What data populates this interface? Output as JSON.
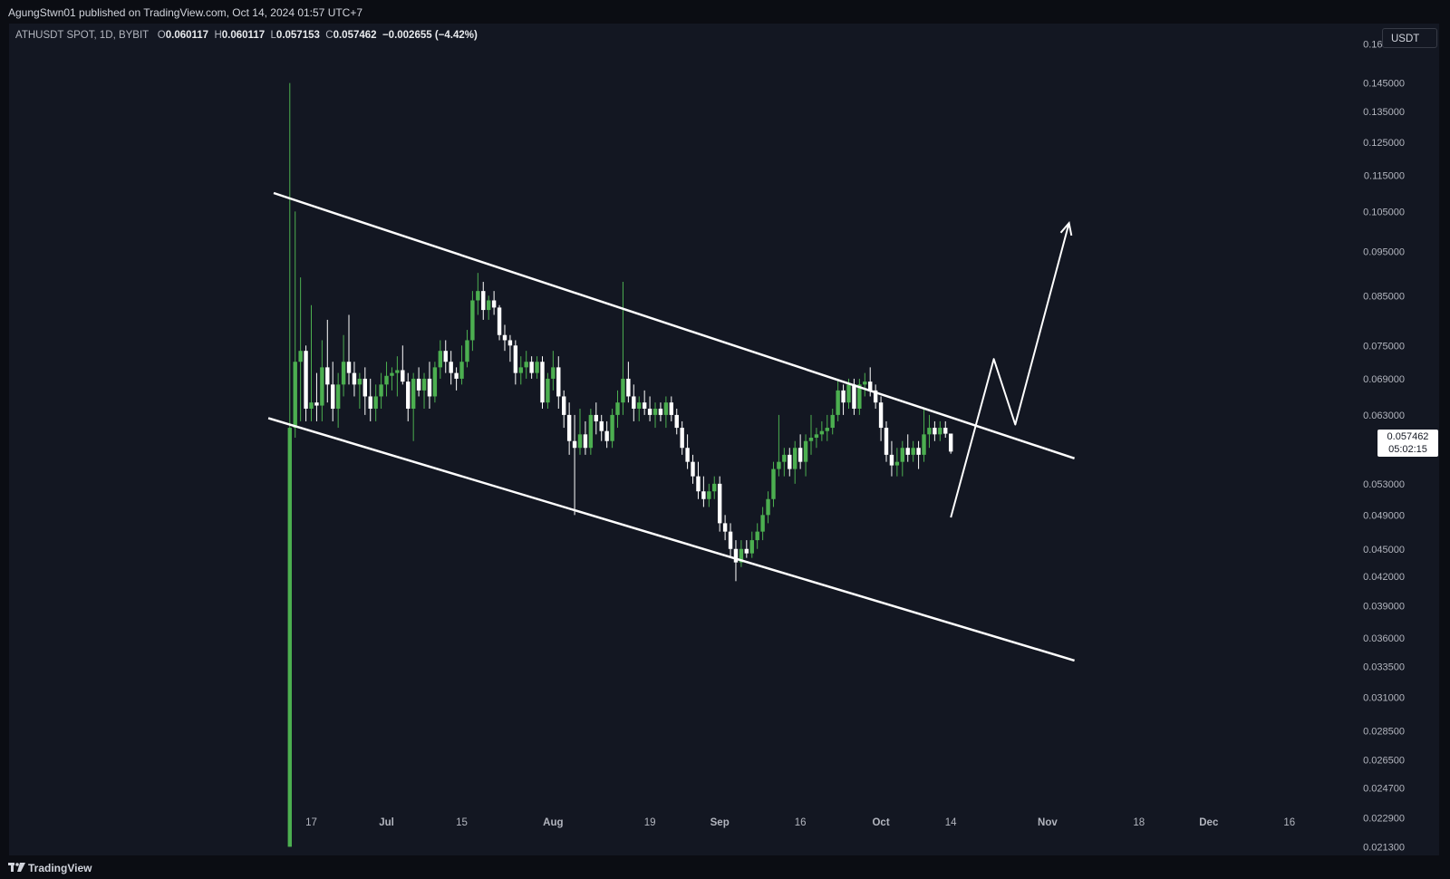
{
  "header": {
    "published": "AgungStwn01 published on TradingView.com, Oct 14, 2024 01:57 UTC+7"
  },
  "legend": {
    "symbol": "ATHUSDT SPOT, 1D, BYBIT",
    "o_label": "O",
    "o": "0.060117",
    "h_label": "H",
    "h": "0.060117",
    "l_label": "L",
    "l": "0.057153",
    "c_label": "C",
    "c": "0.057462",
    "change": "−0.002655 (−4.42%)"
  },
  "currency": "USDT",
  "last_price": {
    "price": "0.057462",
    "countdown": "05:02:15"
  },
  "footer": {
    "brand": "TradingView"
  },
  "colors": {
    "up": "#4caf50",
    "down": "#ffffff",
    "background": "#131722",
    "lines": "#ffffff"
  },
  "chart_data": {
    "type": "candlestick",
    "scale": "log",
    "y_ticks": [
      "0.160000",
      "0.145000",
      "0.135000",
      "0.125000",
      "0.115000",
      "0.105000",
      "0.095000",
      "0.085000",
      "0.075000",
      "0.069000",
      "0.063000",
      "0.053000",
      "0.049000",
      "0.045000",
      "0.042000",
      "0.039000",
      "0.036000",
      "0.033500",
      "0.031000",
      "0.028500",
      "0.026500",
      "0.024700",
      "0.022900",
      "0.021300"
    ],
    "x_ticks": [
      "17",
      "Jul",
      "15",
      "Aug",
      "19",
      "Sep",
      "16",
      "Oct",
      "14",
      "Nov",
      "18",
      "Dec",
      "16"
    ],
    "x_tick_dates": [
      "2024-06-17",
      "2024-07-01",
      "2024-07-15",
      "2024-08-01",
      "2024-08-19",
      "2024-09-01",
      "2024-09-16",
      "2024-10-01",
      "2024-10-14",
      "2024-11-01",
      "2024-11-18",
      "2024-12-01",
      "2024-12-16"
    ],
    "candles": [
      {
        "date": "2024-06-13",
        "o": 0.0213,
        "h": 0.145,
        "l": 0.0213,
        "c": 0.061
      },
      {
        "date": "2024-06-14",
        "o": 0.061,
        "h": 0.105,
        "l": 0.0595,
        "c": 0.072
      },
      {
        "date": "2024-06-15",
        "o": 0.072,
        "h": 0.089,
        "l": 0.062,
        "c": 0.074
      },
      {
        "date": "2024-06-16",
        "o": 0.074,
        "h": 0.075,
        "l": 0.062,
        "c": 0.064
      },
      {
        "date": "2024-06-17",
        "o": 0.064,
        "h": 0.083,
        "l": 0.062,
        "c": 0.065
      },
      {
        "date": "2024-06-18",
        "o": 0.065,
        "h": 0.07,
        "l": 0.062,
        "c": 0.0645
      },
      {
        "date": "2024-06-19",
        "o": 0.0645,
        "h": 0.076,
        "l": 0.062,
        "c": 0.071
      },
      {
        "date": "2024-06-20",
        "o": 0.071,
        "h": 0.08,
        "l": 0.065,
        "c": 0.068
      },
      {
        "date": "2024-06-21",
        "o": 0.068,
        "h": 0.072,
        "l": 0.062,
        "c": 0.064
      },
      {
        "date": "2024-06-22",
        "o": 0.064,
        "h": 0.07,
        "l": 0.061,
        "c": 0.068
      },
      {
        "date": "2024-06-23",
        "o": 0.068,
        "h": 0.077,
        "l": 0.066,
        "c": 0.072
      },
      {
        "date": "2024-06-24",
        "o": 0.072,
        "h": 0.081,
        "l": 0.068,
        "c": 0.07
      },
      {
        "date": "2024-06-25",
        "o": 0.07,
        "h": 0.072,
        "l": 0.066,
        "c": 0.068
      },
      {
        "date": "2024-06-26",
        "o": 0.068,
        "h": 0.07,
        "l": 0.064,
        "c": 0.069
      },
      {
        "date": "2024-06-27",
        "o": 0.069,
        "h": 0.071,
        "l": 0.063,
        "c": 0.066
      },
      {
        "date": "2024-06-28",
        "o": 0.066,
        "h": 0.069,
        "l": 0.062,
        "c": 0.064
      },
      {
        "date": "2024-06-29",
        "o": 0.064,
        "h": 0.068,
        "l": 0.062,
        "c": 0.066
      },
      {
        "date": "2024-06-30",
        "o": 0.066,
        "h": 0.07,
        "l": 0.064,
        "c": 0.068
      },
      {
        "date": "2024-07-01",
        "o": 0.068,
        "h": 0.072,
        "l": 0.066,
        "c": 0.0695
      },
      {
        "date": "2024-07-02",
        "o": 0.0695,
        "h": 0.071,
        "l": 0.067,
        "c": 0.07
      },
      {
        "date": "2024-07-03",
        "o": 0.07,
        "h": 0.073,
        "l": 0.066,
        "c": 0.0705
      },
      {
        "date": "2024-07-04",
        "o": 0.0705,
        "h": 0.075,
        "l": 0.068,
        "c": 0.0685
      },
      {
        "date": "2024-07-05",
        "o": 0.0685,
        "h": 0.07,
        "l": 0.062,
        "c": 0.064
      },
      {
        "date": "2024-07-06",
        "o": 0.064,
        "h": 0.07,
        "l": 0.059,
        "c": 0.069
      },
      {
        "date": "2024-07-07",
        "o": 0.069,
        "h": 0.071,
        "l": 0.066,
        "c": 0.067
      },
      {
        "date": "2024-07-08",
        "o": 0.067,
        "h": 0.07,
        "l": 0.064,
        "c": 0.069
      },
      {
        "date": "2024-07-09",
        "o": 0.069,
        "h": 0.072,
        "l": 0.064,
        "c": 0.066
      },
      {
        "date": "2024-07-10",
        "o": 0.066,
        "h": 0.072,
        "l": 0.065,
        "c": 0.071
      },
      {
        "date": "2024-07-11",
        "o": 0.071,
        "h": 0.076,
        "l": 0.069,
        "c": 0.074
      },
      {
        "date": "2024-07-12",
        "o": 0.074,
        "h": 0.076,
        "l": 0.07,
        "c": 0.072
      },
      {
        "date": "2024-07-13",
        "o": 0.072,
        "h": 0.074,
        "l": 0.068,
        "c": 0.07
      },
      {
        "date": "2024-07-14",
        "o": 0.07,
        "h": 0.071,
        "l": 0.067,
        "c": 0.069
      },
      {
        "date": "2024-07-15",
        "o": 0.069,
        "h": 0.075,
        "l": 0.068,
        "c": 0.072
      },
      {
        "date": "2024-07-16",
        "o": 0.072,
        "h": 0.078,
        "l": 0.071,
        "c": 0.076
      },
      {
        "date": "2024-07-17",
        "o": 0.076,
        "h": 0.086,
        "l": 0.074,
        "c": 0.084
      },
      {
        "date": "2024-07-18",
        "o": 0.084,
        "h": 0.09,
        "l": 0.081,
        "c": 0.086
      },
      {
        "date": "2024-07-19",
        "o": 0.086,
        "h": 0.088,
        "l": 0.08,
        "c": 0.082
      },
      {
        "date": "2024-07-20",
        "o": 0.082,
        "h": 0.085,
        "l": 0.08,
        "c": 0.084
      },
      {
        "date": "2024-07-21",
        "o": 0.084,
        "h": 0.086,
        "l": 0.081,
        "c": 0.0825
      },
      {
        "date": "2024-07-22",
        "o": 0.0825,
        "h": 0.083,
        "l": 0.076,
        "c": 0.077
      },
      {
        "date": "2024-07-23",
        "o": 0.077,
        "h": 0.079,
        "l": 0.074,
        "c": 0.076
      },
      {
        "date": "2024-07-24",
        "o": 0.076,
        "h": 0.077,
        "l": 0.072,
        "c": 0.075
      },
      {
        "date": "2024-07-25",
        "o": 0.075,
        "h": 0.076,
        "l": 0.068,
        "c": 0.07
      },
      {
        "date": "2024-07-26",
        "o": 0.07,
        "h": 0.073,
        "l": 0.068,
        "c": 0.071
      },
      {
        "date": "2024-07-27",
        "o": 0.071,
        "h": 0.074,
        "l": 0.069,
        "c": 0.072
      },
      {
        "date": "2024-07-28",
        "o": 0.072,
        "h": 0.073,
        "l": 0.069,
        "c": 0.07
      },
      {
        "date": "2024-07-29",
        "o": 0.07,
        "h": 0.073,
        "l": 0.069,
        "c": 0.072
      },
      {
        "date": "2024-07-30",
        "o": 0.072,
        "h": 0.073,
        "l": 0.064,
        "c": 0.065
      },
      {
        "date": "2024-07-31",
        "o": 0.065,
        "h": 0.07,
        "l": 0.064,
        "c": 0.069
      },
      {
        "date": "2024-08-01",
        "o": 0.069,
        "h": 0.074,
        "l": 0.067,
        "c": 0.071
      },
      {
        "date": "2024-08-02",
        "o": 0.071,
        "h": 0.073,
        "l": 0.064,
        "c": 0.066
      },
      {
        "date": "2024-08-03",
        "o": 0.066,
        "h": 0.067,
        "l": 0.061,
        "c": 0.063
      },
      {
        "date": "2024-08-04",
        "o": 0.063,
        "h": 0.065,
        "l": 0.057,
        "c": 0.059
      },
      {
        "date": "2024-08-05",
        "o": 0.059,
        "h": 0.063,
        "l": 0.049,
        "c": 0.058
      },
      {
        "date": "2024-08-06",
        "o": 0.058,
        "h": 0.064,
        "l": 0.057,
        "c": 0.06
      },
      {
        "date": "2024-08-07",
        "o": 0.06,
        "h": 0.062,
        "l": 0.057,
        "c": 0.058
      },
      {
        "date": "2024-08-08",
        "o": 0.058,
        "h": 0.064,
        "l": 0.057,
        "c": 0.063
      },
      {
        "date": "2024-08-09",
        "o": 0.063,
        "h": 0.065,
        "l": 0.06,
        "c": 0.062
      },
      {
        "date": "2024-08-10",
        "o": 0.062,
        "h": 0.063,
        "l": 0.059,
        "c": 0.0605
      },
      {
        "date": "2024-08-11",
        "o": 0.0605,
        "h": 0.062,
        "l": 0.058,
        "c": 0.059
      },
      {
        "date": "2024-08-12",
        "o": 0.059,
        "h": 0.064,
        "l": 0.058,
        "c": 0.063
      },
      {
        "date": "2024-08-13",
        "o": 0.063,
        "h": 0.067,
        "l": 0.061,
        "c": 0.065
      },
      {
        "date": "2024-08-14",
        "o": 0.065,
        "h": 0.088,
        "l": 0.063,
        "c": 0.069
      },
      {
        "date": "2024-08-15",
        "o": 0.069,
        "h": 0.072,
        "l": 0.065,
        "c": 0.066
      },
      {
        "date": "2024-08-16",
        "o": 0.066,
        "h": 0.068,
        "l": 0.062,
        "c": 0.064
      },
      {
        "date": "2024-08-17",
        "o": 0.064,
        "h": 0.066,
        "l": 0.062,
        "c": 0.065
      },
      {
        "date": "2024-08-18",
        "o": 0.065,
        "h": 0.067,
        "l": 0.063,
        "c": 0.064
      },
      {
        "date": "2024-08-19",
        "o": 0.064,
        "h": 0.066,
        "l": 0.062,
        "c": 0.063
      },
      {
        "date": "2024-08-20",
        "o": 0.063,
        "h": 0.065,
        "l": 0.061,
        "c": 0.064
      },
      {
        "date": "2024-08-21",
        "o": 0.064,
        "h": 0.065,
        "l": 0.062,
        "c": 0.063
      },
      {
        "date": "2024-08-22",
        "o": 0.063,
        "h": 0.066,
        "l": 0.061,
        "c": 0.065
      },
      {
        "date": "2024-08-23",
        "o": 0.065,
        "h": 0.066,
        "l": 0.062,
        "c": 0.063
      },
      {
        "date": "2024-08-24",
        "o": 0.063,
        "h": 0.064,
        "l": 0.06,
        "c": 0.061
      },
      {
        "date": "2024-08-25",
        "o": 0.061,
        "h": 0.062,
        "l": 0.057,
        "c": 0.058
      },
      {
        "date": "2024-08-26",
        "o": 0.058,
        "h": 0.06,
        "l": 0.055,
        "c": 0.056
      },
      {
        "date": "2024-08-27",
        "o": 0.056,
        "h": 0.057,
        "l": 0.053,
        "c": 0.054
      },
      {
        "date": "2024-08-28",
        "o": 0.054,
        "h": 0.056,
        "l": 0.051,
        "c": 0.052
      },
      {
        "date": "2024-08-29",
        "o": 0.052,
        "h": 0.054,
        "l": 0.05,
        "c": 0.051
      },
      {
        "date": "2024-08-30",
        "o": 0.051,
        "h": 0.053,
        "l": 0.05,
        "c": 0.052
      },
      {
        "date": "2024-08-31",
        "o": 0.052,
        "h": 0.054,
        "l": 0.051,
        "c": 0.053
      },
      {
        "date": "2024-09-01",
        "o": 0.053,
        "h": 0.054,
        "l": 0.047,
        "c": 0.048
      },
      {
        "date": "2024-09-02",
        "o": 0.048,
        "h": 0.049,
        "l": 0.046,
        "c": 0.047
      },
      {
        "date": "2024-09-03",
        "o": 0.047,
        "h": 0.048,
        "l": 0.044,
        "c": 0.045
      },
      {
        "date": "2024-09-04",
        "o": 0.045,
        "h": 0.046,
        "l": 0.0415,
        "c": 0.0435
      },
      {
        "date": "2024-09-05",
        "o": 0.0435,
        "h": 0.046,
        "l": 0.043,
        "c": 0.045
      },
      {
        "date": "2024-09-06",
        "o": 0.045,
        "h": 0.046,
        "l": 0.044,
        "c": 0.0445
      },
      {
        "date": "2024-09-07",
        "o": 0.0445,
        "h": 0.047,
        "l": 0.044,
        "c": 0.046
      },
      {
        "date": "2024-09-08",
        "o": 0.046,
        "h": 0.048,
        "l": 0.045,
        "c": 0.047
      },
      {
        "date": "2024-09-09",
        "o": 0.047,
        "h": 0.05,
        "l": 0.046,
        "c": 0.049
      },
      {
        "date": "2024-09-10",
        "o": 0.049,
        "h": 0.052,
        "l": 0.048,
        "c": 0.051
      },
      {
        "date": "2024-09-11",
        "o": 0.051,
        "h": 0.056,
        "l": 0.05,
        "c": 0.055
      },
      {
        "date": "2024-09-12",
        "o": 0.055,
        "h": 0.063,
        "l": 0.054,
        "c": 0.056
      },
      {
        "date": "2024-09-13",
        "o": 0.056,
        "h": 0.058,
        "l": 0.054,
        "c": 0.057
      },
      {
        "date": "2024-09-14",
        "o": 0.057,
        "h": 0.058,
        "l": 0.054,
        "c": 0.055
      },
      {
        "date": "2024-09-15",
        "o": 0.055,
        "h": 0.059,
        "l": 0.053,
        "c": 0.058
      },
      {
        "date": "2024-09-16",
        "o": 0.058,
        "h": 0.06,
        "l": 0.055,
        "c": 0.056
      },
      {
        "date": "2024-09-17",
        "o": 0.056,
        "h": 0.06,
        "l": 0.054,
        "c": 0.059
      },
      {
        "date": "2024-09-18",
        "o": 0.059,
        "h": 0.063,
        "l": 0.057,
        "c": 0.0595
      },
      {
        "date": "2024-09-19",
        "o": 0.0595,
        "h": 0.061,
        "l": 0.058,
        "c": 0.06
      },
      {
        "date": "2024-09-20",
        "o": 0.06,
        "h": 0.062,
        "l": 0.059,
        "c": 0.0605
      },
      {
        "date": "2024-09-21",
        "o": 0.0605,
        "h": 0.063,
        "l": 0.059,
        "c": 0.061
      },
      {
        "date": "2024-09-22",
        "o": 0.061,
        "h": 0.064,
        "l": 0.06,
        "c": 0.063
      },
      {
        "date": "2024-09-23",
        "o": 0.063,
        "h": 0.069,
        "l": 0.062,
        "c": 0.067
      },
      {
        "date": "2024-09-24",
        "o": 0.067,
        "h": 0.068,
        "l": 0.063,
        "c": 0.065
      },
      {
        "date": "2024-09-25",
        "o": 0.065,
        "h": 0.069,
        "l": 0.064,
        "c": 0.068
      },
      {
        "date": "2024-09-26",
        "o": 0.068,
        "h": 0.069,
        "l": 0.063,
        "c": 0.064
      },
      {
        "date": "2024-09-27",
        "o": 0.064,
        "h": 0.069,
        "l": 0.063,
        "c": 0.068
      },
      {
        "date": "2024-09-28",
        "o": 0.068,
        "h": 0.07,
        "l": 0.066,
        "c": 0.0685
      },
      {
        "date": "2024-09-29",
        "o": 0.0685,
        "h": 0.071,
        "l": 0.066,
        "c": 0.067
      },
      {
        "date": "2024-09-30",
        "o": 0.067,
        "h": 0.068,
        "l": 0.064,
        "c": 0.065
      },
      {
        "date": "2024-10-01",
        "o": 0.065,
        "h": 0.066,
        "l": 0.059,
        "c": 0.061
      },
      {
        "date": "2024-10-02",
        "o": 0.061,
        "h": 0.062,
        "l": 0.056,
        "c": 0.057
      },
      {
        "date": "2024-10-03",
        "o": 0.057,
        "h": 0.059,
        "l": 0.054,
        "c": 0.0555
      },
      {
        "date": "2024-10-04",
        "o": 0.0555,
        "h": 0.058,
        "l": 0.054,
        "c": 0.056
      },
      {
        "date": "2024-10-05",
        "o": 0.056,
        "h": 0.059,
        "l": 0.054,
        "c": 0.058
      },
      {
        "date": "2024-10-06",
        "o": 0.058,
        "h": 0.06,
        "l": 0.056,
        "c": 0.057
      },
      {
        "date": "2024-10-07",
        "o": 0.057,
        "h": 0.059,
        "l": 0.056,
        "c": 0.058
      },
      {
        "date": "2024-10-08",
        "o": 0.058,
        "h": 0.059,
        "l": 0.055,
        "c": 0.057
      },
      {
        "date": "2024-10-09",
        "o": 0.057,
        "h": 0.064,
        "l": 0.056,
        "c": 0.06
      },
      {
        "date": "2024-10-10",
        "o": 0.06,
        "h": 0.063,
        "l": 0.058,
        "c": 0.061
      },
      {
        "date": "2024-10-11",
        "o": 0.061,
        "h": 0.062,
        "l": 0.059,
        "c": 0.06
      },
      {
        "date": "2024-10-12",
        "o": 0.06,
        "h": 0.062,
        "l": 0.059,
        "c": 0.061
      },
      {
        "date": "2024-10-13",
        "o": 0.061,
        "h": 0.062,
        "l": 0.0595,
        "c": 0.0601
      },
      {
        "date": "2024-10-14",
        "o": 0.060117,
        "h": 0.060117,
        "l": 0.057153,
        "c": 0.057462
      }
    ],
    "drawings": {
      "upper_trendline": [
        {
          "date": "2024-06-10",
          "price": 0.11
        },
        {
          "date": "2024-11-06",
          "price": 0.0565
        }
      ],
      "lower_trendline": [
        {
          "date": "2024-06-09",
          "price": 0.0625
        },
        {
          "date": "2024-11-06",
          "price": 0.034
        }
      ],
      "projection_path": [
        {
          "date": "2024-10-14",
          "price": 0.0487
        },
        {
          "date": "2024-10-22",
          "price": 0.0725
        },
        {
          "date": "2024-10-26",
          "price": 0.0615
        },
        {
          "date": "2024-11-05",
          "price": 0.102
        }
      ]
    }
  }
}
